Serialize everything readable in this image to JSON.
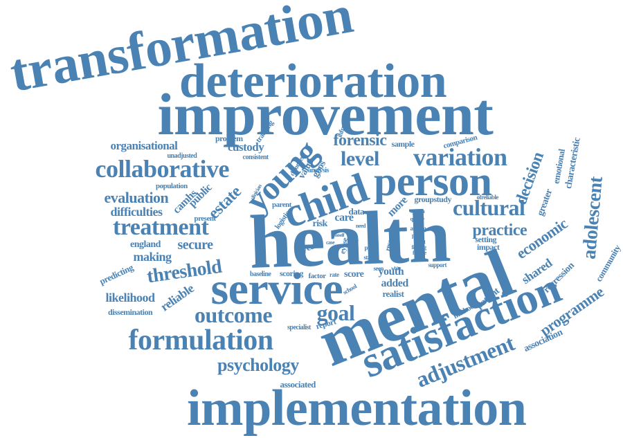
{
  "color": "#4a82b4",
  "words": [
    "transformation",
    "deterioration",
    "improvement",
    "health",
    "mental",
    "service",
    "satisfaction",
    "implementation",
    "child",
    "person",
    "young",
    "collaborative",
    "variation",
    "level",
    "forensic",
    "formulation",
    "treatment",
    "outcome",
    "goal",
    "cultural",
    "adolescent",
    "threshold",
    "psychology",
    "adjustment",
    "decision",
    "practice",
    "economic",
    "estate",
    "evaluation",
    "difficulties",
    "organisational",
    "custody",
    "secure",
    "making",
    "england",
    "likelihood",
    "reliable",
    "programme",
    "shared",
    "characteristic",
    "emotional",
    "greater",
    "regression",
    "community",
    "association",
    "patient",
    "predicting",
    "dissemination",
    "added",
    "score",
    "youth",
    "realist",
    "year",
    "care",
    "data",
    "risk",
    "logistic",
    "associated",
    "report",
    "specialist",
    "more",
    "groupstudy",
    "setting",
    "impact",
    "public",
    "camhs",
    "population",
    "unadjusted",
    "problem",
    "tracking",
    "consistent",
    "sample",
    "comparison",
    "analysis",
    "infrequent",
    "gbos",
    "value",
    "disorder",
    "clinician",
    "parent",
    "present",
    "baseline",
    "scoring",
    "factor",
    "rate",
    "school",
    "method",
    "seen",
    "white",
    "support",
    "research",
    "autism",
    "paper",
    "result",
    "finding",
    "female",
    "proc",
    "staff",
    "site",
    "need",
    "system",
    "quality",
    "ofreliable",
    "eypse",
    "case",
    "time",
    "self"
  ]
}
